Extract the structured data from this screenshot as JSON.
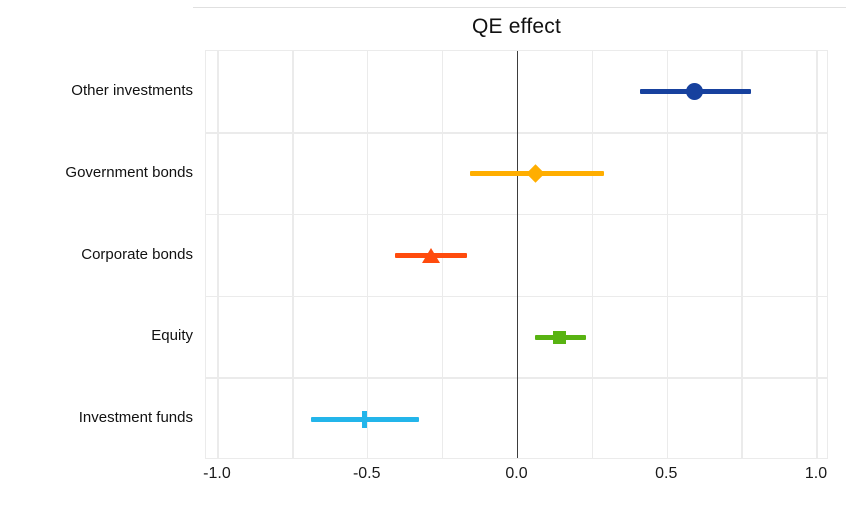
{
  "chart_data": {
    "type": "scatter",
    "subtype": "horizontal-errorbar-coefficient-plot",
    "title": "QE effect",
    "categories": [
      "Other investments",
      "Government bonds",
      "Corporate bonds",
      "Equity",
      "Investment funds"
    ],
    "series": [
      {
        "name": "Other investments",
        "marker": "circle",
        "color": "#17419e",
        "estimate": 0.59,
        "ci_low": 0.41,
        "ci_high": 0.78
      },
      {
        "name": "Government bonds",
        "marker": "diamond",
        "color": "#ffae00",
        "estimate": 0.06,
        "ci_low": -0.16,
        "ci_high": 0.29
      },
      {
        "name": "Corporate bonds",
        "marker": "triangle",
        "color": "#ff4b0d",
        "estimate": -0.29,
        "ci_low": -0.41,
        "ci_high": -0.17
      },
      {
        "name": "Equity",
        "marker": "square",
        "color": "#58b312",
        "estimate": 0.14,
        "ci_low": 0.06,
        "ci_high": 0.23
      },
      {
        "name": "Investment funds",
        "marker": "vline",
        "color": "#23b5ea",
        "estimate": -0.51,
        "ci_low": -0.69,
        "ci_high": -0.33
      }
    ],
    "xlim": [
      -1.04,
      1.04
    ],
    "x_ticks": [
      -1.0,
      -0.5,
      0.0,
      0.5,
      1.0
    ],
    "x_tick_labels": [
      "-1.0",
      "-0.5",
      "0.0",
      "0.5",
      "1.0"
    ],
    "x_minor_step": 0.25,
    "zero_line": true,
    "grid": "vertical lines every 0.25; horizontal separators between category rows",
    "legend_position": "none",
    "colors": {
      "background": "#ffffff",
      "gridline": "#ebebeb",
      "zero_line": "#3d3d3d",
      "text": "#111111",
      "top_rule": "#e0e0e0"
    }
  }
}
